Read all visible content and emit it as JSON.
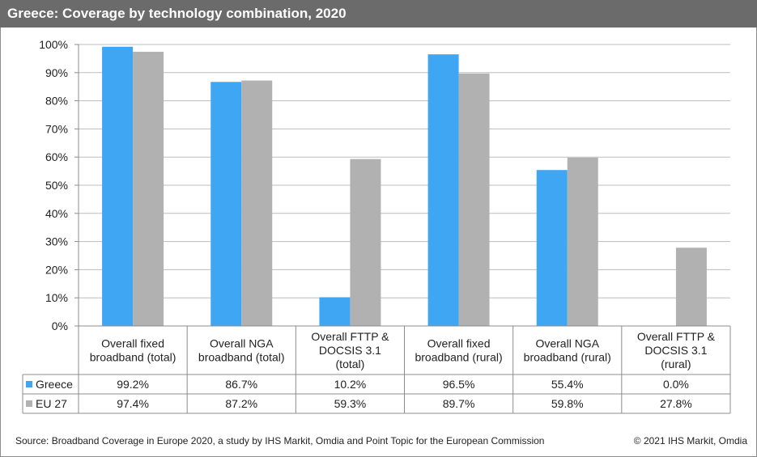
{
  "title": "Greece: Coverage by technology combination, 2020",
  "source": "Source: Broadband Coverage in Europe 2020, a study by IHS Markit, Omdia and Point Topic for the European Commission",
  "copyright": "© 2021 IHS Markit, Omdia",
  "colors": {
    "greece": "#3ea6f3",
    "eu27": "#b1b1b1",
    "header": "#6b6b6b",
    "grid": "#bdbdbd"
  },
  "chart_data": {
    "type": "bar",
    "title": "Greece: Coverage by technology combination, 2020",
    "categories": [
      [
        "Overall fixed",
        "broadband (total)"
      ],
      [
        "Overall NGA",
        "broadband (total)"
      ],
      [
        "Overall FTTP &",
        "DOCSIS 3.1",
        "(total)"
      ],
      [
        "Overall fixed",
        "broadband (rural)"
      ],
      [
        "Overall NGA",
        "broadband (rural)"
      ],
      [
        "Overall FTTP &",
        "DOCSIS 3.1",
        "(rural)"
      ]
    ],
    "series": [
      {
        "name": "Greece",
        "values": [
          99.2,
          86.7,
          10.2,
          96.5,
          55.4,
          0.0
        ],
        "labels": [
          "99.2%",
          "86.7%",
          "10.2%",
          "96.5%",
          "55.4%",
          "0.0%"
        ],
        "color": "#3ea6f3"
      },
      {
        "name": "EU 27",
        "values": [
          97.4,
          87.2,
          59.3,
          89.7,
          59.8,
          27.8
        ],
        "labels": [
          "97.4%",
          "87.2%",
          "59.3%",
          "89.7%",
          "59.8%",
          "27.8%"
        ],
        "color": "#b1b1b1"
      }
    ],
    "ylim": [
      0,
      100
    ],
    "yticks": [
      "0%",
      "10%",
      "20%",
      "30%",
      "40%",
      "50%",
      "60%",
      "70%",
      "80%",
      "90%",
      "100%"
    ],
    "grid": true,
    "legend": "data-table"
  }
}
